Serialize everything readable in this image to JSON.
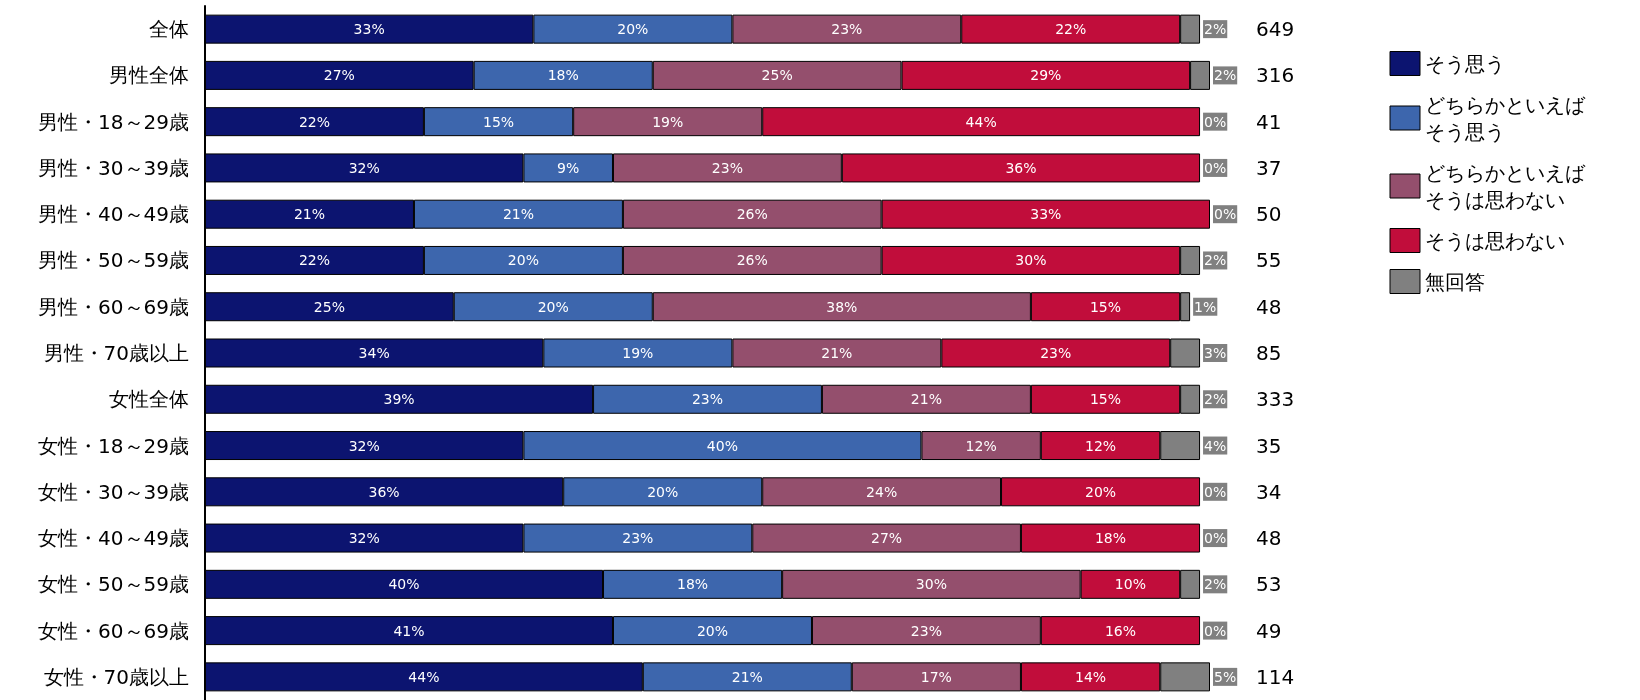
{
  "chart_data": {
    "type": "bar",
    "orientation": "horizontal",
    "stacked": true,
    "legend": "right",
    "categories": [
      "全体",
      "男性全体",
      "男性・18～29歳",
      "男性・30～39歳",
      "男性・40～49歳",
      "男性・50～59歳",
      "男性・60～69歳",
      "男性・70歳以上",
      "女性全体",
      "女性・18～29歳",
      "女性・30～39歳",
      "女性・40～49歳",
      "女性・50～59歳",
      "女性・60～69歳",
      "女性・70歳以上"
    ],
    "series": [
      {
        "name": "そう思う",
        "color": "#0c1470",
        "values": [
          33,
          27,
          22,
          32,
          21,
          22,
          25,
          34,
          39,
          32,
          36,
          32,
          40,
          41,
          44
        ],
        "value_labels": [
          "33%",
          "27%",
          "22%",
          "32%",
          "21%",
          "22%",
          "25%",
          "34%",
          "39%",
          "32%",
          "36%",
          "32%",
          "40%",
          "41%",
          "44%"
        ]
      },
      {
        "name": "どちらかといえばそう思う",
        "color": "#3d66ad",
        "values": [
          20,
          18,
          15,
          9,
          21,
          20,
          20,
          19,
          23,
          40,
          20,
          23,
          18,
          20,
          21
        ],
        "value_labels": [
          "20%",
          "18%",
          "15%",
          "9%",
          "21%",
          "20%",
          "20%",
          "19%",
          "23%",
          "40%",
          "20%",
          "23%",
          "18%",
          "20%",
          "21%"
        ]
      },
      {
        "name": "どちらかといえばそうは思わない",
        "color": "#944f6d",
        "values": [
          23,
          25,
          19,
          23,
          26,
          26,
          38,
          21,
          21,
          12,
          24,
          27,
          30,
          23,
          17
        ],
        "value_labels": [
          "23%",
          "25%",
          "19%",
          "23%",
          "26%",
          "26%",
          "38%",
          "21%",
          "21%",
          "12%",
          "24%",
          "27%",
          "30%",
          "23%",
          "17%"
        ]
      },
      {
        "name": "そうは思わない",
        "color": "#c10d3b",
        "values": [
          22,
          29,
          44,
          36,
          33,
          30,
          15,
          23,
          15,
          12,
          20,
          18,
          10,
          16,
          14
        ],
        "value_labels": [
          "22%",
          "29%",
          "44%",
          "36%",
          "33%",
          "30%",
          "15%",
          "23%",
          "15%",
          "12%",
          "20%",
          "18%",
          "10%",
          "16%",
          "14%"
        ]
      },
      {
        "name": "無回答",
        "color": "#808080",
        "values": [
          2,
          2,
          0,
          0,
          0,
          2,
          1,
          3,
          2,
          4,
          0,
          0,
          2,
          0,
          5
        ],
        "value_labels": [
          "2%",
          "2%",
          "0%",
          "0%",
          "0%",
          "2%",
          "1%",
          "3%",
          "2%",
          "4%",
          "0%",
          "0%",
          "2%",
          "0%",
          "5%"
        ]
      }
    ],
    "annotations": [
      "649",
      "316",
      "41",
      "37",
      "50",
      "55",
      "48",
      "85",
      "333",
      "35",
      "34",
      "48",
      "53",
      "49",
      "114"
    ]
  }
}
